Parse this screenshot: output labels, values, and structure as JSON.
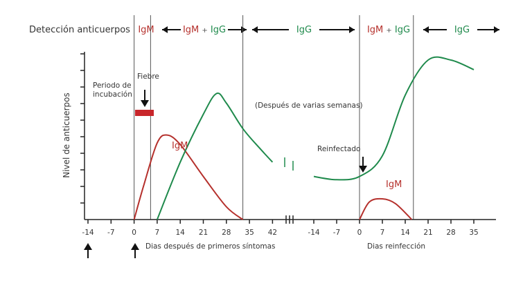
{
  "colors": {
    "igm": "#b5302c",
    "igg": "#1f8a4c",
    "axis": "#222222",
    "text": "#333333",
    "fever_bar": "#c8262b"
  },
  "detection_row": {
    "label": "Detección anticuerpos",
    "segments": [
      {
        "text": "IgM",
        "kind": "igm"
      },
      {
        "text": "IgM + IgG",
        "kind": "mixed"
      },
      {
        "text": "IgG",
        "kind": "igg"
      },
      {
        "text": "IgM + IgG",
        "kind": "mixed"
      },
      {
        "text": "IgG",
        "kind": "igg"
      }
    ]
  },
  "annotations": {
    "incubation": [
      "Periodo de",
      "incubación"
    ],
    "fever": "Fiebre",
    "igm_primary": "IgM",
    "igm_reinfection": "IgM",
    "weeks_note": "(Después de varias semanas)",
    "reinfected": "Reinfectado",
    "x_caption_primary": "Dias después de primeros síntomas",
    "x_caption_reinfection": "Dias reinfección"
  },
  "chart_data": {
    "type": "line",
    "ylabel": "Nivel de anticuerpos",
    "x_ticks_primary": [
      "-14",
      "-7",
      "0",
      "7",
      "14",
      "21",
      "28",
      "35",
      "42"
    ],
    "x_ticks_reinfection": [
      "-14",
      "-7",
      "0",
      "7",
      "14",
      "21",
      "28",
      "35"
    ],
    "series": [
      {
        "name": "IgM",
        "phase": "primary",
        "x": [
          0,
          3,
          7,
          10,
          14,
          21,
          28,
          33
        ],
        "y": [
          0,
          0.22,
          0.48,
          0.53,
          0.47,
          0.27,
          0.08,
          0
        ]
      },
      {
        "name": "IgG",
        "phase": "primary",
        "x": [
          7,
          14,
          21,
          25,
          28,
          33,
          38,
          42
        ],
        "y": [
          0,
          0.36,
          0.66,
          0.79,
          0.73,
          0.57,
          0.45,
          0.36
        ]
      },
      {
        "name": "IgG",
        "phase": "reinfection",
        "x": [
          -14,
          -7,
          0,
          7,
          14,
          21,
          28,
          35
        ],
        "y": [
          0.27,
          0.25,
          0.27,
          0.4,
          0.78,
          1.0,
          1.0,
          0.94
        ]
      },
      {
        "name": "IgM",
        "phase": "reinfection",
        "x": [
          0,
          3,
          7,
          11,
          16
        ],
        "y": [
          0,
          0.11,
          0.13,
          0.1,
          0
        ]
      }
    ]
  }
}
